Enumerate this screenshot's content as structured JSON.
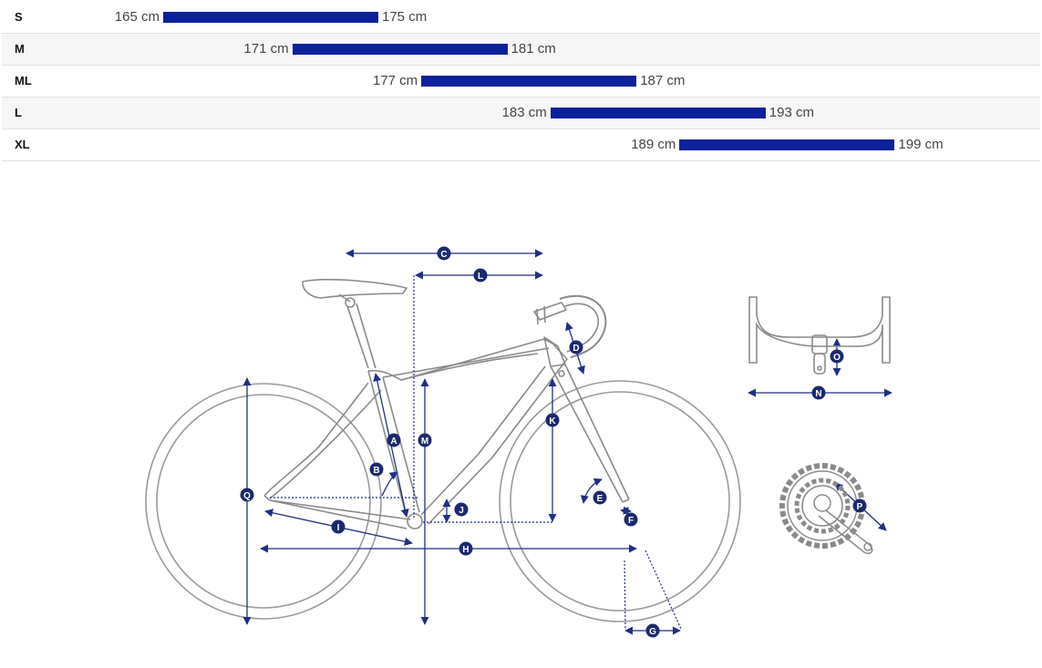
{
  "size_chart": {
    "rows": [
      {
        "size": "S",
        "min": "165 cm",
        "max": "175 cm",
        "min_cm": 165,
        "max_cm": 175
      },
      {
        "size": "M",
        "min": "171 cm",
        "max": "181 cm",
        "min_cm": 171,
        "max_cm": 181
      },
      {
        "size": "ML",
        "min": "177 cm",
        "max": "187 cm",
        "min_cm": 177,
        "max_cm": 187
      },
      {
        "size": "L",
        "min": "183 cm",
        "max": "193 cm",
        "min_cm": 183,
        "max_cm": 193
      },
      {
        "size": "XL",
        "min": "189 cm",
        "max": "199 cm",
        "min_cm": 189,
        "max_cm": 199
      }
    ]
  },
  "geometry_labels": {
    "A": "A",
    "B": "B",
    "C": "C",
    "D": "D",
    "E": "E",
    "F": "F",
    "G": "G",
    "H": "H",
    "I": "I",
    "J": "J",
    "K": "K",
    "L": "L",
    "M": "M",
    "N": "N",
    "O": "O",
    "P": "P",
    "Q": "Q"
  },
  "colors": {
    "accent": "#0a2299",
    "badge": "#1a2a6e",
    "line": "#1f2f85",
    "frame": "#8a8a8a"
  }
}
